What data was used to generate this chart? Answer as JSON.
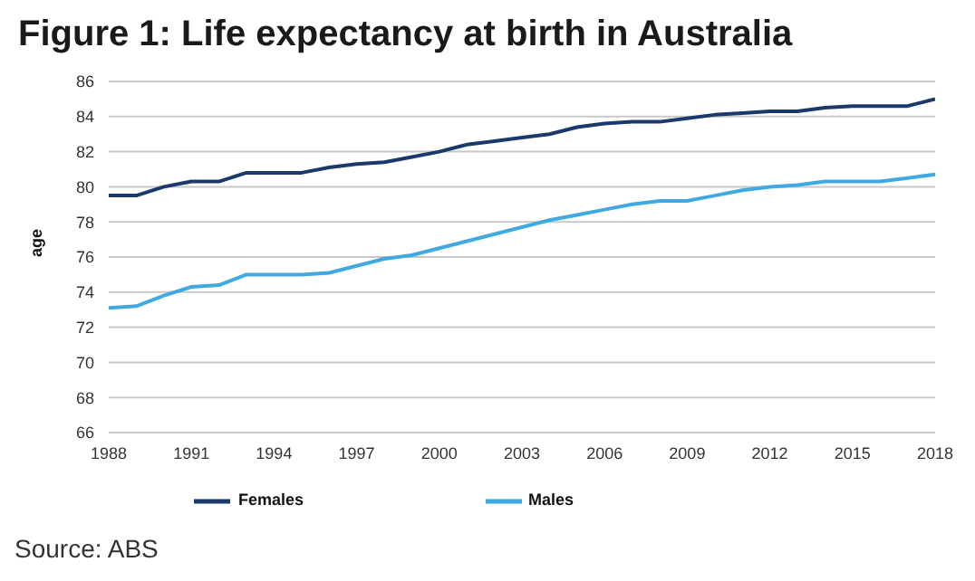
{
  "chart_data": {
    "type": "line",
    "title": "Figure 1: Life expectancy at birth in Australia",
    "ylabel": "age",
    "x": [
      1988,
      1989,
      1990,
      1991,
      1992,
      1993,
      1994,
      1995,
      1996,
      1997,
      1998,
      1999,
      2000,
      2001,
      2002,
      2003,
      2004,
      2005,
      2006,
      2007,
      2008,
      2009,
      2010,
      2011,
      2012,
      2013,
      2014,
      2015,
      2016,
      2017,
      2018
    ],
    "series": [
      {
        "name": "Males",
        "color": "#41a9e1",
        "values": [
          73.1,
          73.2,
          73.8,
          74.3,
          74.4,
          75.0,
          75.0,
          75.0,
          75.1,
          75.5,
          75.9,
          76.1,
          76.5,
          76.9,
          77.3,
          77.7,
          78.1,
          78.4,
          78.7,
          79.0,
          79.2,
          79.2,
          79.5,
          79.8,
          80.0,
          80.1,
          80.3,
          80.3,
          80.3,
          80.5,
          80.7
        ]
      },
      {
        "name": "Females",
        "color": "#1b3a6b",
        "values": [
          79.5,
          79.5,
          80.0,
          80.3,
          80.3,
          80.8,
          80.8,
          80.8,
          81.1,
          81.3,
          81.4,
          81.7,
          82.0,
          82.4,
          82.6,
          82.8,
          83.0,
          83.4,
          83.6,
          83.7,
          83.7,
          83.9,
          84.1,
          84.2,
          84.3,
          84.3,
          84.5,
          84.6,
          84.6,
          84.6,
          85.0
        ]
      }
    ],
    "xlim": [
      1988,
      2018
    ],
    "xticks": [
      1988,
      1991,
      1994,
      1997,
      2000,
      2003,
      2006,
      2009,
      2012,
      2015,
      2018
    ],
    "ylim": [
      66,
      86
    ],
    "yticks": [
      66,
      68,
      70,
      72,
      74,
      76,
      78,
      80,
      82,
      84,
      86
    ],
    "grid": "y",
    "legend": "bottom",
    "marker": "none",
    "line_style": "solid",
    "annotations": [
      "Source: ABS"
    ]
  }
}
